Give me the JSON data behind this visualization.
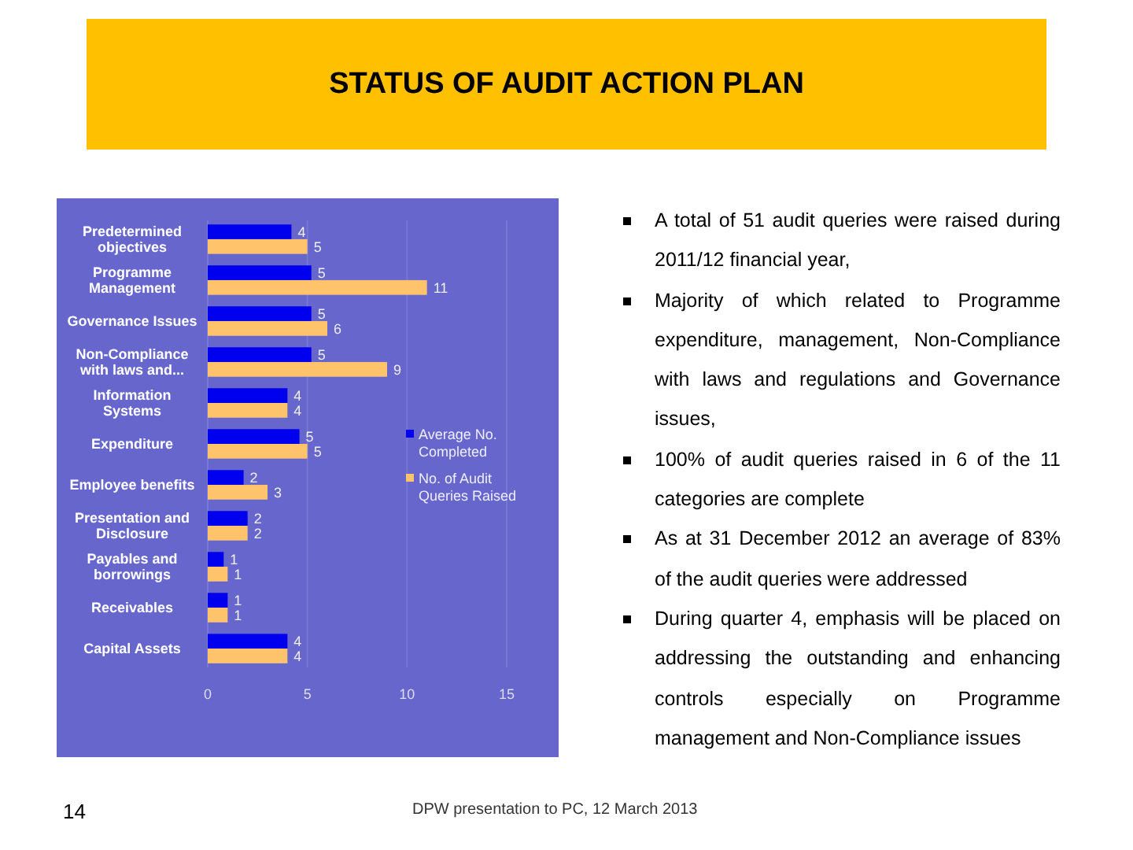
{
  "chart_data": {
    "type": "bar",
    "orientation": "horizontal",
    "title": "STATUS OF AUDIT ACTION PLAN",
    "categories": [
      "Predetermined objectives",
      "Programme Management",
      "Governance Issues",
      "Non-Compliance with laws and...",
      "Information Systems",
      "Expenditure",
      "Employee benefits",
      "Presentation and Disclosure",
      "Payables and borrowings",
      "Receivables",
      "Capital Assets"
    ],
    "series": [
      {
        "name": "Average No. Completed",
        "color": "#0000ee",
        "values": [
          4.2,
          5.2,
          5.2,
          5.2,
          4,
          4.6,
          1.8,
          2,
          0.8,
          1,
          4
        ],
        "value_labels": [
          "4",
          "5",
          "5",
          "5",
          "4",
          "5",
          "2",
          "2",
          "1",
          "1",
          "4"
        ]
      },
      {
        "name": "No. of Audit Queries Raised",
        "color": "#ffc36b",
        "values": [
          5,
          11,
          6,
          9,
          4,
          5,
          3,
          2,
          1,
          1,
          4
        ],
        "value_labels": [
          "5",
          "11",
          "6",
          "9",
          "4",
          "5",
          "3",
          "2",
          "1",
          "1",
          "4"
        ]
      }
    ],
    "xlim": [
      0,
      15
    ],
    "xticks": [
      0,
      5,
      10,
      15
    ],
    "grid": "x",
    "legend": "right",
    "annotations": [
      "A total of 51 audit queries were raised during 2011/12 financial year,",
      "Majority of which related to Programme expenditure, management, Non-Compliance with laws and regulations and Governance issues,",
      "100% of audit queries raised in 6 of the 11 categories are complete",
      "As at 31 December 2012 an average of 83% of the audit queries were addressed",
      "During quarter 4, emphasis will be placed on addressing the outstanding and enhancing controls especially on Programme management and Non-Compliance issues",
      "14",
      "DPW presentation to PC, 12 March 2013"
    ]
  }
}
